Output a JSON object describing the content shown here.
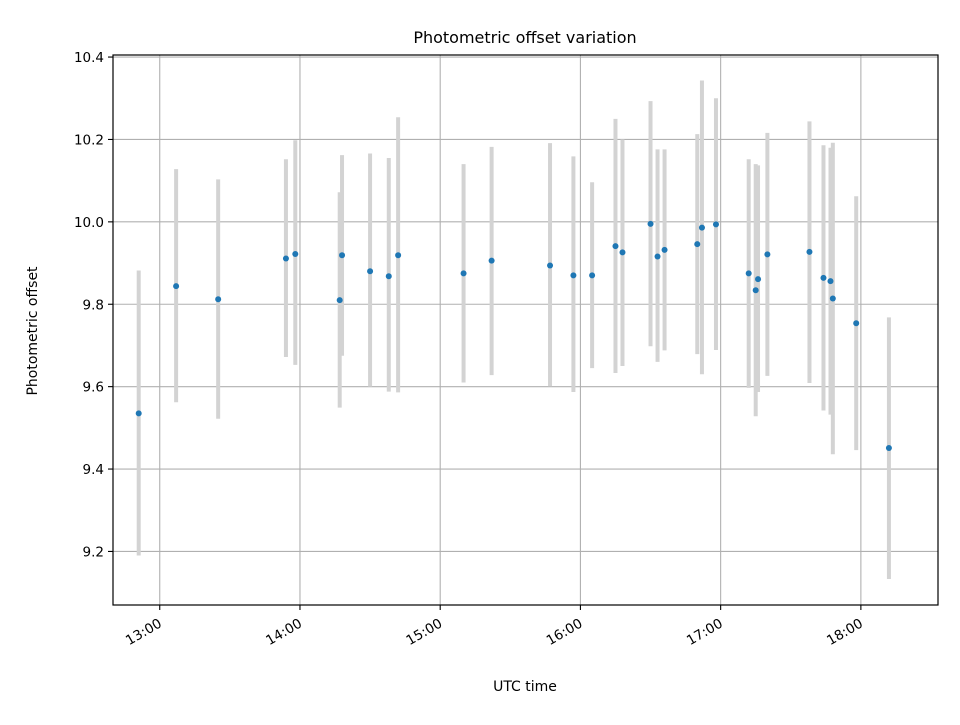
{
  "chart_data": {
    "type": "scatter",
    "title": "Photometric offset variation",
    "xlabel": "UTC time",
    "ylabel": "Photometric offset",
    "x_ticks": [
      "13:00",
      "14:00",
      "15:00",
      "16:00",
      "17:00",
      "18:00"
    ],
    "y_ticks": [
      "9.2",
      "9.4",
      "9.6",
      "9.8",
      "10.0",
      "10.2",
      "10.4"
    ],
    "xlim": [
      "12:40",
      "18:33"
    ],
    "ylim": [
      9.07,
      10.405
    ],
    "grid": true,
    "legend": "none",
    "colors": {
      "points": "#1f77b4",
      "error_bars": "#d3d3d3",
      "grid": "#b0b0b0"
    },
    "series": [
      {
        "points": [
          {
            "x": "12:51",
            "y": 9.535,
            "low": 9.19,
            "high": 9.882
          },
          {
            "x": "13:07",
            "y": 9.844,
            "low": 9.562,
            "high": 10.128
          },
          {
            "x": "13:25",
            "y": 9.812,
            "low": 9.522,
            "high": 10.103
          },
          {
            "x": "13:54",
            "y": 9.911,
            "low": 9.672,
            "high": 10.152
          },
          {
            "x": "13:58",
            "y": 9.922,
            "low": 9.653,
            "high": 10.198
          },
          {
            "x": "14:17",
            "y": 9.81,
            "low": 9.549,
            "high": 10.072
          },
          {
            "x": "14:18",
            "y": 9.919,
            "low": 9.675,
            "high": 10.162
          },
          {
            "x": "14:30",
            "y": 9.88,
            "low": 9.6,
            "high": 10.166
          },
          {
            "x": "14:38",
            "y": 9.868,
            "low": 9.588,
            "high": 10.155
          },
          {
            "x": "14:42",
            "y": 9.919,
            "low": 9.586,
            "high": 10.254
          },
          {
            "x": "15:10",
            "y": 9.875,
            "low": 9.61,
            "high": 10.14
          },
          {
            "x": "15:22",
            "y": 9.906,
            "low": 9.628,
            "high": 10.182
          },
          {
            "x": "15:47",
            "y": 9.894,
            "low": 9.601,
            "high": 10.191
          },
          {
            "x": "15:57",
            "y": 9.87,
            "low": 9.587,
            "high": 10.159
          },
          {
            "x": "16:05",
            "y": 9.87,
            "low": 9.645,
            "high": 10.096
          },
          {
            "x": "16:15",
            "y": 9.941,
            "low": 9.633,
            "high": 10.25
          },
          {
            "x": "16:18",
            "y": 9.926,
            "low": 9.65,
            "high": 10.2
          },
          {
            "x": "16:30",
            "y": 9.995,
            "low": 9.698,
            "high": 10.293
          },
          {
            "x": "16:33",
            "y": 9.916,
            "low": 9.66,
            "high": 10.176
          },
          {
            "x": "16:36",
            "y": 9.932,
            "low": 9.688,
            "high": 10.176
          },
          {
            "x": "16:50",
            "y": 9.946,
            "low": 9.679,
            "high": 10.213
          },
          {
            "x": "16:52",
            "y": 9.986,
            "low": 9.63,
            "high": 10.343
          },
          {
            "x": "16:58",
            "y": 9.994,
            "low": 9.689,
            "high": 10.3
          },
          {
            "x": "17:12",
            "y": 9.875,
            "low": 9.597,
            "high": 10.152
          },
          {
            "x": "17:15",
            "y": 9.834,
            "low": 9.528,
            "high": 10.14
          },
          {
            "x": "17:16",
            "y": 9.861,
            "low": 9.587,
            "high": 10.137
          },
          {
            "x": "17:20",
            "y": 9.921,
            "low": 9.626,
            "high": 10.216
          },
          {
            "x": "17:38",
            "y": 9.927,
            "low": 9.609,
            "high": 10.244
          },
          {
            "x": "17:44",
            "y": 9.864,
            "low": 9.542,
            "high": 10.186
          },
          {
            "x": "17:47",
            "y": 9.856,
            "low": 9.532,
            "high": 10.18
          },
          {
            "x": "17:48",
            "y": 9.814,
            "low": 9.436,
            "high": 10.192
          },
          {
            "x": "17:58",
            "y": 9.754,
            "low": 9.446,
            "high": 10.062
          },
          {
            "x": "18:12",
            "y": 9.451,
            "low": 9.133,
            "high": 9.768
          }
        ]
      }
    ]
  }
}
